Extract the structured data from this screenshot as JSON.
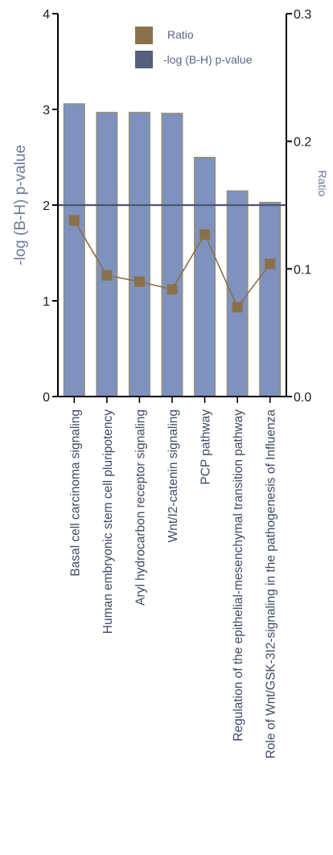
{
  "chart_data": {
    "type": "bar",
    "categories": [
      "Basal cell carcinoma signaling",
      "Human embryonic stem cell pluripotency",
      "Aryl hydrocarbon receptor signaling",
      "Wnt/I2-catenin signaling",
      "PCP pathway",
      "Regulation of the epithelial-mesenchymal transition pathway",
      "Role of Wnt/GSK-3I2-signaling in the pathogenesis of Influenza"
    ],
    "series": [
      {
        "name": "-log (B-H) p-value",
        "type": "bar",
        "axis": "left",
        "values": [
          3.06,
          2.97,
          2.97,
          2.96,
          2.5,
          2.15,
          2.03
        ]
      },
      {
        "name": "Ratio",
        "type": "line",
        "axis": "right",
        "values": [
          0.138,
          0.095,
          0.09,
          0.084,
          0.127,
          0.07,
          0.104
        ]
      }
    ],
    "ylabel": "-log (B-H) p-value",
    "ylabel_right": "Ratio",
    "ylim": [
      0,
      4
    ],
    "ylim_right": [
      0,
      0.3
    ],
    "yticks": [
      "0",
      "1",
      "2",
      "3",
      "4"
    ],
    "yticks_right": [
      "0.0",
      "0.1",
      "0.2",
      "0.3"
    ],
    "threshold": 2,
    "legend_position": "top-right",
    "colors": {
      "bar_fill": "#7e92bd",
      "bar_stroke": "#a08a5c",
      "ratio": "#8b7149",
      "threshold": "#4b5572",
      "legend_pvalue": "#57607c"
    }
  }
}
